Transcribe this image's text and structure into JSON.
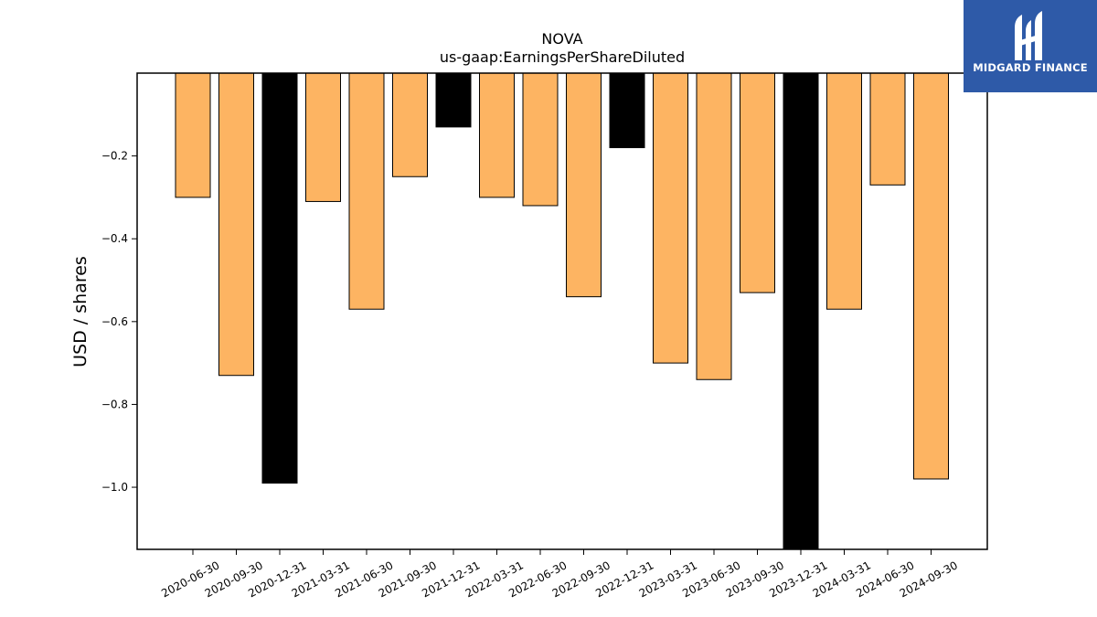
{
  "chart_data": {
    "type": "bar",
    "title": "NOVA",
    "subtitle": "us-gaap:EarningsPerShareDiluted",
    "xlabel": "",
    "ylabel": "USD / shares",
    "ylim": [
      -1.15,
      0
    ],
    "yticks": [
      -0.2,
      -0.4,
      -0.6,
      -0.8,
      -1.0
    ],
    "ytick_labels": [
      "−0.2",
      "−0.4",
      "−0.6",
      "−0.8",
      "−1.0"
    ],
    "grid": false,
    "categories": [
      "2020-06-30",
      "2020-09-30",
      "2020-12-31",
      "2021-03-31",
      "2021-06-30",
      "2021-09-30",
      "2021-12-31",
      "2022-03-31",
      "2022-06-30",
      "2022-09-30",
      "2022-12-31",
      "2023-03-31",
      "2023-06-30",
      "2023-09-30",
      "2023-12-31",
      "2024-03-31",
      "2024-06-30",
      "2024-09-30"
    ],
    "values": [
      -0.3,
      -0.73,
      -0.99,
      -0.31,
      -0.57,
      -0.25,
      -0.13,
      -0.3,
      -0.32,
      -0.54,
      -0.18,
      -0.7,
      -0.74,
      -0.53,
      -1.25,
      -0.57,
      -0.27,
      -0.98
    ],
    "bar_colors": [
      "#fdb462",
      "#fdb462",
      "#000000",
      "#fdb462",
      "#fdb462",
      "#fdb462",
      "#000000",
      "#fdb462",
      "#fdb462",
      "#fdb462",
      "#000000",
      "#fdb462",
      "#fdb462",
      "#fdb462",
      "#000000",
      "#fdb462",
      "#fdb462",
      "#fdb462"
    ]
  },
  "logo": {
    "text": "MIDGARD FINANCE",
    "background": "#2e5aa8"
  }
}
